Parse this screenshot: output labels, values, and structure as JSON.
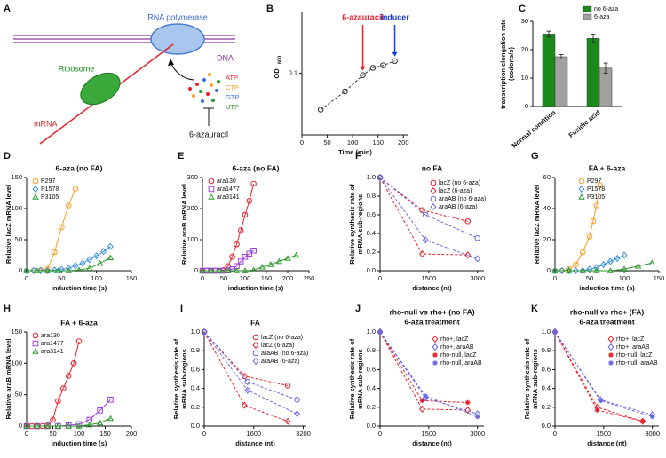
{
  "diagram": {
    "panel": "A",
    "polymerase": "RNA polymerase",
    "dna": "DNA",
    "ribosome": "Ribosome",
    "mrna": "mRNA",
    "nucleotides": [
      "ATP",
      "CTP",
      "GTP",
      "UTP"
    ],
    "nucleotide_colors": [
      "#e8202a",
      "#f5a02a",
      "#3a6fe0",
      "#2a9a2a"
    ],
    "inhibitor": "6-azauracil"
  },
  "chart_data": [
    {
      "panel": "B",
      "type": "line",
      "yscale": "log",
      "line_style": "dashed",
      "xlabel": "Time (min)",
      "ylabel": "OD",
      "ylabel_sub": "600",
      "xlim": [
        0,
        210
      ],
      "xticks": [
        0,
        50,
        100,
        150,
        200
      ],
      "ylim": [
        0.013,
        0.75
      ],
      "yticks": [
        0.1
      ],
      "series": [
        {
          "color": "#333333",
          "marker": "circle",
          "x": [
            37,
            85,
            120,
            140,
            160,
            183
          ],
          "values": [
            0.03,
            0.055,
            0.094,
            0.12,
            0.13,
            0.15
          ]
        }
      ],
      "annotations": [
        {
          "text": "6-azauracil",
          "x": 120,
          "color": "#e8202a"
        },
        {
          "text": "inducer",
          "x": 183,
          "color": "#1a3fe0"
        }
      ]
    },
    {
      "panel": "C",
      "type": "bar",
      "ylabel": [
        "transcription elongation rate",
        "(codons/s)"
      ],
      "categories": [
        "Normal condition",
        "Fusidic acid"
      ],
      "ylim": [
        0,
        30
      ],
      "yticks": [
        0,
        10,
        20,
        30
      ],
      "series": [
        {
          "name": "no 6-aza",
          "color": "#1a8a1a",
          "values": [
            25.5,
            24
          ],
          "errors": [
            1,
            1.5
          ]
        },
        {
          "name": "6-aza",
          "color": "#a0a0a0",
          "values": [
            17.5,
            13.5
          ],
          "errors": [
            0.8,
            1.8
          ]
        }
      ]
    },
    {
      "panel": "D",
      "type": "scatter",
      "line_style": "solid",
      "title": "6-aza (no FA)",
      "xlabel": "induction time (s)",
      "ylabel": "Relative lacZ mRNA level",
      "xlim": [
        0,
        150
      ],
      "xticks": [
        0,
        50,
        100,
        150
      ],
      "ylim": [
        0,
        150
      ],
      "yticks": [
        0,
        50,
        100,
        150
      ],
      "series": [
        {
          "name": "P297",
          "color": "#f5a02a",
          "marker": "circle",
          "x": [
            0,
            10,
            20,
            30,
            40,
            50,
            60,
            70
          ],
          "values": [
            0,
            0,
            1,
            3,
            30,
            70,
            105,
            132
          ]
        },
        {
          "name": "P1578",
          "color": "#3a8fe0",
          "marker": "diamond",
          "x": [
            0,
            10,
            20,
            30,
            40,
            50,
            60,
            70,
            80,
            90,
            100,
            110,
            120
          ],
          "values": [
            0,
            0,
            0,
            0,
            1,
            2,
            4,
            8,
            12,
            18,
            24,
            31,
            39
          ]
        },
        {
          "name": "P3105",
          "color": "#2a9a2a",
          "marker": "triangle",
          "x": [
            0,
            15,
            30,
            45,
            60,
            75,
            90,
            105,
            120
          ],
          "values": [
            0,
            0,
            0,
            0,
            0,
            1,
            4,
            12,
            21
          ]
        }
      ]
    },
    {
      "panel": "E",
      "type": "scatter",
      "line_style": "solid",
      "title": "6-aza (no FA)",
      "xlabel": "induction time (s)",
      "ylabel": "Relative araB mRNA level",
      "xlim": [
        0,
        250
      ],
      "xticks": [
        0,
        50,
        100,
        150,
        200,
        250
      ],
      "ylim": [
        0,
        300
      ],
      "yticks": [
        0,
        100,
        200,
        300
      ],
      "series": [
        {
          "name": "ara130",
          "color": "#e8202a",
          "marker": "circle",
          "x": [
            0,
            10,
            20,
            30,
            40,
            50,
            60,
            70,
            80,
            90,
            100,
            110,
            120
          ],
          "values": [
            0,
            0,
            0,
            0,
            0,
            2,
            15,
            45,
            85,
            130,
            180,
            225,
            280
          ]
        },
        {
          "name": "ara1477",
          "color": "#a040e0",
          "marker": "square",
          "x": [
            0,
            10,
            20,
            30,
            40,
            50,
            60,
            70,
            80,
            90,
            100,
            110,
            120
          ],
          "values": [
            0,
            0,
            0,
            0,
            0,
            0,
            1,
            5,
            15,
            30,
            45,
            55,
            65
          ]
        },
        {
          "name": "ara3141",
          "color": "#2a9a2a",
          "marker": "triangle",
          "x": [
            0,
            20,
            40,
            60,
            80,
            100,
            120,
            140,
            160,
            180,
            200,
            220
          ],
          "values": [
            0,
            0,
            0,
            0,
            0,
            0,
            2,
            12,
            20,
            30,
            40,
            50
          ]
        }
      ]
    },
    {
      "panel": "F",
      "type": "line",
      "line_style": "dashed",
      "title": "no FA",
      "xlabel": "distance (nt)",
      "ylabel": [
        "Relative synthesis rate of",
        "mRNA sub-regions"
      ],
      "xlim": [
        0,
        3200
      ],
      "xticks": [
        0,
        1500,
        3000
      ],
      "ylim": [
        0,
        1
      ],
      "yticks": [
        {
          "value": 0,
          "label": "0.0"
        },
        0.2,
        0.4,
        0.6,
        0.8,
        {
          "value": 1,
          "label": "1.0"
        }
      ],
      "series": [
        {
          "name": "lacZ (no 6-aza)",
          "color": "#e8202a",
          "marker": "circle",
          "x": [
            0,
            1300,
            2700
          ],
          "values": [
            1,
            0.65,
            0.53
          ]
        },
        {
          "name": "lacZ (6-aza)",
          "color": "#e8202a",
          "marker": "diamond",
          "x": [
            0,
            1300,
            2700
          ],
          "values": [
            1,
            0.18,
            0.17
          ]
        },
        {
          "name": "araAB (no 6-aza)",
          "color": "#6a6ae0",
          "marker": "circle",
          "x": [
            0,
            1400,
            3000
          ],
          "values": [
            1,
            0.6,
            0.35
          ]
        },
        {
          "name": "araAB (6-aza)",
          "color": "#6a6ae0",
          "marker": "diamond",
          "x": [
            0,
            1400,
            3000
          ],
          "values": [
            1,
            0.33,
            0.13
          ]
        }
      ]
    },
    {
      "panel": "G",
      "type": "scatter",
      "line_style": "solid",
      "title": "FA + 6-aza",
      "xlabel": "induction time (s)",
      "ylabel": "Relative lacZ mRNA level",
      "xlim": [
        0,
        150
      ],
      "xticks": [
        0,
        50,
        100,
        150
      ],
      "ylim": [
        0,
        60
      ],
      "yticks": [
        0,
        20,
        40,
        60
      ],
      "series": [
        {
          "name": "P297",
          "color": "#f5a02a",
          "marker": "circle",
          "x": [
            0,
            10,
            20,
            30,
            40,
            50,
            55,
            60,
            65
          ],
          "values": [
            0,
            0,
            1,
            4,
            12,
            22,
            32,
            42,
            55
          ]
        },
        {
          "name": "P1578",
          "color": "#3a8fe0",
          "marker": "diamond",
          "x": [
            0,
            10,
            20,
            30,
            40,
            50,
            60,
            70,
            80,
            90,
            100
          ],
          "values": [
            0,
            0,
            0,
            0,
            0,
            1,
            2,
            4,
            6,
            8,
            10
          ]
        },
        {
          "name": "P3105",
          "color": "#2a9a2a",
          "marker": "triangle",
          "x": [
            0,
            20,
            40,
            60,
            80,
            100,
            120,
            140
          ],
          "values": [
            0,
            0,
            0,
            0,
            0,
            1,
            3,
            5
          ]
        }
      ]
    },
    {
      "panel": "H",
      "type": "scatter",
      "line_style": "solid",
      "title": "FA + 6-aza",
      "xlabel": "induction time (s)",
      "ylabel": "Relative araB mRNA level",
      "xlim": [
        0,
        200
      ],
      "xticks": [
        0,
        50,
        100,
        150,
        200
      ],
      "ylim": [
        0,
        150
      ],
      "yticks": [
        0,
        50,
        100,
        150
      ],
      "series": [
        {
          "name": "ara130",
          "color": "#e8202a",
          "marker": "circle",
          "x": [
            0,
            10,
            20,
            30,
            40,
            50,
            60,
            70,
            80,
            90,
            100
          ],
          "values": [
            0,
            0,
            0,
            0,
            1,
            10,
            40,
            60,
            80,
            100,
            135
          ]
        },
        {
          "name": "ara1477",
          "color": "#a040e0",
          "marker": "square",
          "x": [
            0,
            20,
            40,
            60,
            80,
            100,
            120,
            140,
            160
          ],
          "values": [
            0,
            0,
            0,
            0,
            1,
            3,
            10,
            25,
            42
          ]
        },
        {
          "name": "ara3141",
          "color": "#2a9a2a",
          "marker": "triangle",
          "x": [
            0,
            20,
            40,
            60,
            80,
            100,
            120,
            140,
            160
          ],
          "values": [
            0,
            0,
            0,
            0,
            0,
            0,
            2,
            5,
            12
          ]
        }
      ]
    },
    {
      "panel": "I",
      "type": "line",
      "line_style": "dashed",
      "title": "FA",
      "xlabel": "distance (nt)",
      "ylabel": [
        "Relative synthesis rate of",
        "mRNA sub-regions"
      ],
      "xlim": [
        0,
        3300
      ],
      "xticks": [
        0,
        1600,
        3200
      ],
      "ylim": [
        0,
        1
      ],
      "yticks": [
        {
          "value": 0,
          "label": "0.0"
        },
        0.2,
        0.4,
        0.6,
        0.8,
        {
          "value": 1,
          "label": "1.0"
        }
      ],
      "series": [
        {
          "name": "lacZ (no 6-aza)",
          "color": "#e8202a",
          "marker": "circle",
          "x": [
            0,
            1300,
            2700
          ],
          "values": [
            1,
            0.53,
            0.43
          ]
        },
        {
          "name": "lacZ (6-aza)",
          "color": "#e8202a",
          "marker": "diamond",
          "x": [
            0,
            1300,
            2700
          ],
          "values": [
            1,
            0.22,
            0.05
          ]
        },
        {
          "name": "araAB (no 6-aza)",
          "color": "#6a6ae0",
          "marker": "circle",
          "x": [
            0,
            1400,
            3000
          ],
          "values": [
            1,
            0.47,
            0.28
          ]
        },
        {
          "name": "araAB (6-aza)",
          "color": "#6a6ae0",
          "marker": "diamond",
          "x": [
            0,
            1400,
            3000
          ],
          "values": [
            1,
            0.38,
            0.13
          ]
        }
      ]
    },
    {
      "panel": "J",
      "type": "line",
      "line_style": "dashed",
      "title": "rho-null vs rho+ (no FA)",
      "subtitle": "6-aza treatment",
      "xlabel": "distance (nt)",
      "ylabel": [
        "Relative synthesis rate of",
        "mRNA sub-regions"
      ],
      "xlim": [
        0,
        3200
      ],
      "xticks": [
        0,
        1500,
        3000
      ],
      "ylim": [
        0,
        1
      ],
      "yticks": [
        {
          "value": 0,
          "label": "0.0"
        },
        0.2,
        0.4,
        0.6,
        0.8,
        {
          "value": 1,
          "label": "1.0"
        }
      ],
      "series": [
        {
          "name": "rho+, lacZ",
          "color": "#e8202a",
          "marker": "diamond",
          "x": [
            0,
            1300,
            2700
          ],
          "values": [
            1,
            0.18,
            0.17
          ]
        },
        {
          "name": "rho+, araAB",
          "color": "#6a6ae0",
          "marker": "diamond",
          "x": [
            0,
            1400,
            3000
          ],
          "values": [
            1,
            0.3,
            0.13
          ]
        },
        {
          "name": "rho-null, lacZ",
          "color": "#e8202a",
          "marker": "asterisk",
          "x": [
            0,
            1300,
            2700
          ],
          "values": [
            1,
            0.27,
            0.25
          ]
        },
        {
          "name": "rho-null, araAB",
          "color": "#6a6ae0",
          "marker": "asterisk",
          "x": [
            0,
            1400,
            3000
          ],
          "values": [
            1,
            0.32,
            0.1
          ]
        }
      ]
    },
    {
      "panel": "K",
      "type": "line",
      "line_style": "dashed",
      "title": "rho-null vs rho+ (FA)",
      "subtitle": "6-aza treatment",
      "xlabel": "distance (nt)",
      "ylabel": [
        "Relative synthesis rate of",
        "mRNA sub-regions"
      ],
      "xlim": [
        0,
        3200
      ],
      "xticks": [
        0,
        1500,
        3000
      ],
      "ylim": [
        0,
        1
      ],
      "yticks": [
        {
          "value": 0,
          "label": "0.0"
        },
        0.2,
        0.4,
        0.6,
        0.8,
        {
          "value": 1,
          "label": "1.0"
        }
      ],
      "series": [
        {
          "name": "rho+, lacZ",
          "color": "#e8202a",
          "marker": "diamond",
          "x": [
            0,
            1300,
            2700
          ],
          "values": [
            1,
            0.2,
            0.05
          ]
        },
        {
          "name": "rho+, araAB",
          "color": "#6a6ae0",
          "marker": "diamond",
          "x": [
            0,
            1400,
            3000
          ],
          "values": [
            1,
            0.28,
            0.12
          ]
        },
        {
          "name": "rho-null, lacZ",
          "color": "#e8202a",
          "marker": "asterisk",
          "x": [
            0,
            1300,
            2700
          ],
          "values": [
            1,
            0.17,
            0.05
          ]
        },
        {
          "name": "rho-null, araAB",
          "color": "#6a6ae0",
          "marker": "asterisk",
          "x": [
            0,
            1400,
            3000
          ],
          "values": [
            1,
            0.27,
            0.1
          ]
        }
      ]
    }
  ]
}
